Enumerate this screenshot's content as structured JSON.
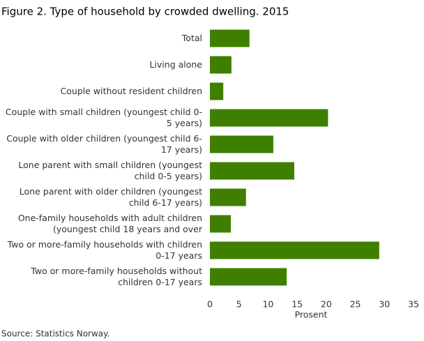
{
  "chart_data": {
    "type": "barh",
    "title": "Figure 2. Type of household by crowded dwelling. 2015",
    "categories": [
      "Total",
      "Living alone",
      "Couple without resident children",
      "Couple with small children (youngest child 0-5 years)",
      "Couple with older children (youngest child 6-17 years)",
      "Lone parent with small children (youngest child 0-5 years)",
      "Lone parent with older children (youngest child 6-17 years)",
      "One-family households with adult children (youngest child 18 years and over",
      "Two or more-family households with children 0-17 years",
      "Two or more-family households without children 0-17 years"
    ],
    "values": [
      6.8,
      3.7,
      2.3,
      20.3,
      10.9,
      14.5,
      6.2,
      3.6,
      29.1,
      13.2
    ],
    "color": "#3f7f00",
    "xlabel": "Prosent",
    "xlim": [
      0,
      35
    ],
    "xticks": [
      0,
      5,
      10,
      15,
      20,
      25,
      30,
      35
    ],
    "grid": false,
    "source": "Source: Statistics Norway."
  }
}
